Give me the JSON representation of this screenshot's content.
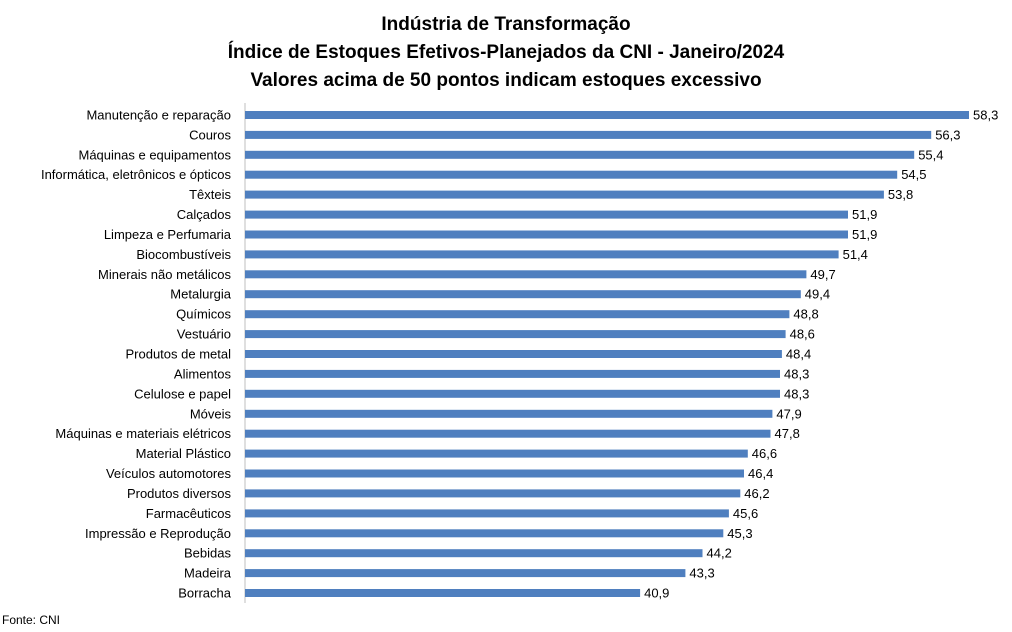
{
  "chart_data": {
    "type": "bar",
    "orientation": "horizontal",
    "title_lines": [
      "Indústria de Transformação",
      "Índice de Estoques Efetivos-Planejados da CNI - Janeiro/2024",
      "Valores acima de 50 pontos indicam estoques excessivo"
    ],
    "categories": [
      "Manutenção e reparação",
      "Couros",
      "Máquinas e equipamentos",
      "Informática, eletrônicos e ópticos",
      "Têxteis",
      "Calçados",
      "Limpeza e Perfumaria",
      "Biocombustíveis",
      "Minerais não metálicos",
      "Metalurgia",
      "Químicos",
      "Vestuário",
      "Produtos de metal",
      "Alimentos",
      "Celulose e papel",
      "Móveis",
      "Máquinas e materiais elétricos",
      "Material Plástico",
      "Veículos automotores",
      "Produtos diversos",
      "Farmacêuticos",
      "Impressão e Reprodução ",
      "Bebidas",
      "Madeira",
      "Borracha"
    ],
    "values": [
      58.3,
      56.3,
      55.4,
      54.5,
      53.8,
      51.9,
      51.9,
      51.4,
      49.7,
      49.4,
      48.8,
      48.6,
      48.4,
      48.3,
      48.3,
      47.9,
      47.8,
      46.6,
      46.4,
      46.2,
      45.6,
      45.3,
      44.2,
      43.3,
      40.9
    ],
    "value_labels": [
      "58,3",
      "56,3",
      "55,4",
      "54,5",
      "53,8",
      "51,9",
      "51,9",
      "51,4",
      "49,7",
      "49,4",
      "48,8",
      "48,6",
      "48,4",
      "48,3",
      "48,3",
      "47,9",
      "47,8",
      "46,6",
      "46,4",
      "46,2",
      "45,6",
      "45,3",
      "44,2",
      "43,3",
      "40,9"
    ],
    "xlim": [
      20,
      60
    ],
    "grid": false,
    "legend": "none",
    "bar_color": "#4f7fbf",
    "source": "Fonte: CNI"
  }
}
